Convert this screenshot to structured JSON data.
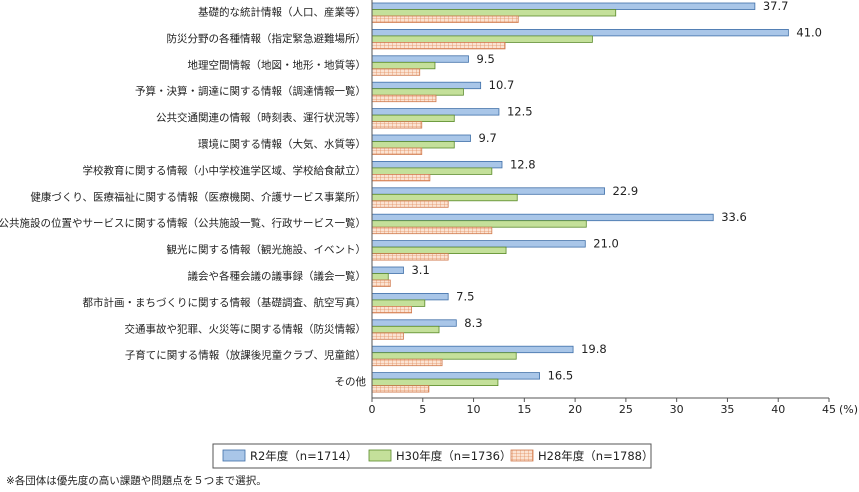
{
  "chart_data": {
    "type": "bar",
    "orientation": "horizontal",
    "categories": [
      "基礎的な統計情報（人口、産業等）",
      "防災分野の各種情報（指定緊急避難場所）",
      "地理空間情報（地図・地形・地質等）",
      "予算・決算・調達に関する情報（調達情報一覧）",
      "公共交通関連の情報（時刻表、運行状況等）",
      "環境に関する情報（大気、水質等）",
      "学校教育に関する情報（小中学校進学区域、学校給食献立）",
      "健康づくり、医療福祉に関する情報（医療機関、介護サービス事業所）",
      "公共施設の位置やサービスに関する情報（公共施設一覧、行政サービス一覧）",
      "観光に関する情報（観光施設、イベント）",
      "議会や各種会議の議事録（議会一覧）",
      "都市計画・まちづくりに関する情報（基礎調査、航空写真）",
      "交通事故や犯罪、火災等に関する情報（防災情報）",
      "子育てに関する情報（放課後児童クラブ、児童館）",
      "その他"
    ],
    "series": [
      {
        "name": "R2年度（n=1714）",
        "values": [
          37.7,
          41.0,
          9.5,
          10.7,
          12.5,
          9.7,
          12.8,
          22.9,
          33.6,
          21.0,
          3.1,
          7.5,
          8.3,
          19.8,
          16.5
        ],
        "color": "#a9c6e8",
        "stroke": "#3f6fa8",
        "pattern": "solid"
      },
      {
        "name": "H30年度（n=1736）",
        "values": [
          24.0,
          21.7,
          6.2,
          9.0,
          8.1,
          8.1,
          11.8,
          14.3,
          21.1,
          13.2,
          1.6,
          5.2,
          6.6,
          14.2,
          12.4
        ],
        "color": "#c4e09a",
        "stroke": "#5a8a2a",
        "pattern": "solid"
      },
      {
        "name": "H28年度（n=1788）",
        "values": [
          14.4,
          13.1,
          4.7,
          6.3,
          4.9,
          4.9,
          5.7,
          7.5,
          11.8,
          7.5,
          1.8,
          3.9,
          3.1,
          6.9,
          5.6
        ],
        "color": "#f6c6a8",
        "stroke": "#d07a4e",
        "pattern": "grid"
      }
    ],
    "data_labels_series": "R2年度（n=1714）",
    "xlim": [
      0,
      45
    ],
    "xticks": [
      0,
      5,
      10,
      15,
      20,
      25,
      30,
      35,
      40,
      45
    ],
    "x_unit": "(%)",
    "grid": false,
    "legend_position": "bottom"
  },
  "footnote": "※各団体は優先度の高い課題や問題点を５つまで選択。"
}
